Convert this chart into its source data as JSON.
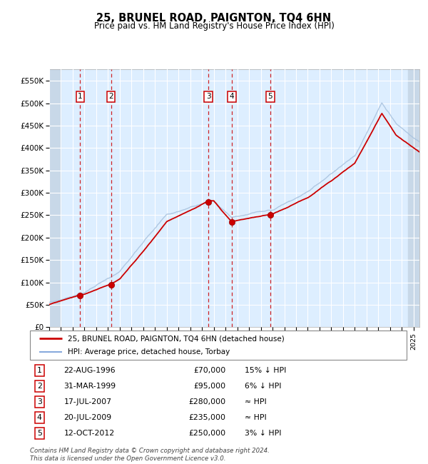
{
  "title": "25, BRUNEL ROAD, PAIGNTON, TQ4 6HN",
  "subtitle": "Price paid vs. HM Land Registry's House Price Index (HPI)",
  "ylabel_ticks": [
    "£0",
    "£50K",
    "£100K",
    "£150K",
    "£200K",
    "£250K",
    "£300K",
    "£350K",
    "£400K",
    "£450K",
    "£500K",
    "£550K"
  ],
  "ytick_values": [
    0,
    50000,
    100000,
    150000,
    200000,
    250000,
    300000,
    350000,
    400000,
    450000,
    500000,
    550000
  ],
  "xmin": 1994.0,
  "xmax": 2025.5,
  "ymin": 0,
  "ymax": 575000,
  "transactions": [
    {
      "num": 1,
      "date_dec": 1996.64,
      "price": 70000,
      "label": "22-AUG-1996",
      "price_str": "£70,000",
      "note": "15% ↓ HPI"
    },
    {
      "num": 2,
      "date_dec": 1999.25,
      "price": 95000,
      "label": "31-MAR-1999",
      "price_str": "£95,000",
      "note": "6% ↓ HPI"
    },
    {
      "num": 3,
      "date_dec": 2007.54,
      "price": 280000,
      "label": "17-JUL-2007",
      "price_str": "£280,000",
      "note": "≈ HPI"
    },
    {
      "num": 4,
      "date_dec": 2009.54,
      "price": 235000,
      "label": "20-JUL-2009",
      "price_str": "£235,000",
      "note": "≈ HPI"
    },
    {
      "num": 5,
      "date_dec": 2012.79,
      "price": 250000,
      "label": "12-OCT-2012",
      "price_str": "£250,000",
      "note": "3% ↓ HPI"
    }
  ],
  "legend_line1": "25, BRUNEL ROAD, PAIGNTON, TQ4 6HN (detached house)",
  "legend_line2": "HPI: Average price, detached house, Torbay",
  "legend_color1": "#cc0000",
  "legend_color2": "#88aadd",
  "footer": "Contains HM Land Registry data © Crown copyright and database right 2024.\nThis data is licensed under the Open Government Licence v3.0.",
  "bg_color": "#ddeeff",
  "hatch_color": "#c8d8e8",
  "grid_color": "#ffffff",
  "tx_line_color": "#cc0000",
  "box_color": "#cc0000"
}
